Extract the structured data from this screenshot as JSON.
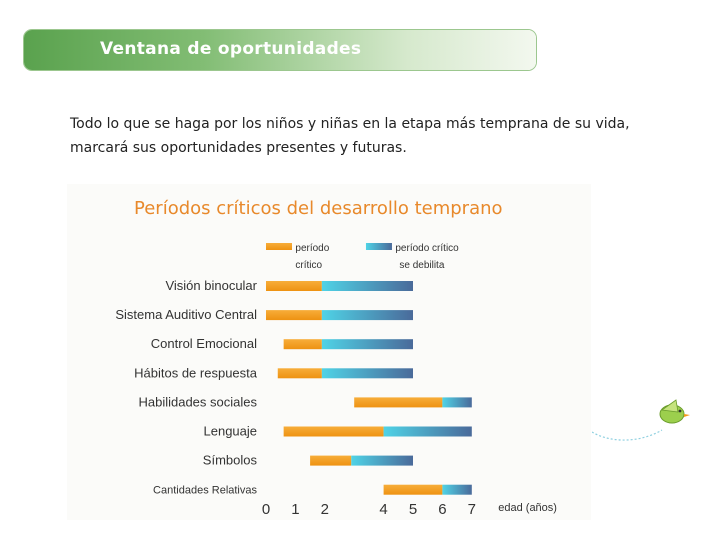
{
  "header": {
    "title": "Ventana de oportunidades"
  },
  "intro_text": "Todo lo que se haga por los niños y niñas en la etapa más temprana de su vida, marcará sus oportunidades presentes y futuras.",
  "colors": {
    "critical": "#f29a1a",
    "weakening_start": "#4fd3e6",
    "weakening_end": "#4a6a9a",
    "title_bar": "#6aab5c",
    "chart_title": "#e8892b"
  },
  "chart_data": {
    "type": "bar",
    "title": "Períodos críticos del desarrollo temprano",
    "xlabel": "edad (años)",
    "xticks": [
      0,
      1,
      2,
      4,
      5,
      6,
      7
    ],
    "xlim": [
      0,
      7
    ],
    "legend_position": "top",
    "series": [
      {
        "name": "período crítico",
        "name_lines": [
          "período",
          "crítico"
        ]
      },
      {
        "name": "período crítico se debilita",
        "name_lines": [
          "período crítico",
          "se debilita"
        ]
      }
    ],
    "categories": [
      "Visión binocular",
      "Sistema Auditivo Central",
      "Control Emocional",
      "Hábitos de respuesta",
      "Habilidades sociales",
      "Lenguaje",
      "Símbolos",
      "Cantidades Relativas"
    ],
    "rows": [
      {
        "category": "Visión binocular",
        "critical": [
          0,
          1.9
        ],
        "weakening": [
          1.9,
          5
        ]
      },
      {
        "category": "Sistema Auditivo Central",
        "critical": [
          0,
          1.9
        ],
        "weakening": [
          1.9,
          5
        ]
      },
      {
        "category": "Control Emocional",
        "critical": [
          0.6,
          1.9
        ],
        "weakening": [
          1.9,
          5
        ]
      },
      {
        "category": "Hábitos de respuesta",
        "critical": [
          0.4,
          1.9
        ],
        "weakening": [
          1.9,
          5
        ]
      },
      {
        "category": "Habilidades sociales",
        "critical": [
          3,
          6
        ],
        "weakening": [
          6,
          7
        ]
      },
      {
        "category": "Lenguaje",
        "critical": [
          0.6,
          4
        ],
        "weakening": [
          4,
          7
        ]
      },
      {
        "category": "Símbolos",
        "critical": [
          1.5,
          2.9
        ],
        "weakening": [
          2.9,
          5
        ]
      },
      {
        "category": "Cantidades Relativas",
        "critical": [
          4,
          6
        ],
        "weakening": [
          6,
          7
        ]
      }
    ]
  }
}
